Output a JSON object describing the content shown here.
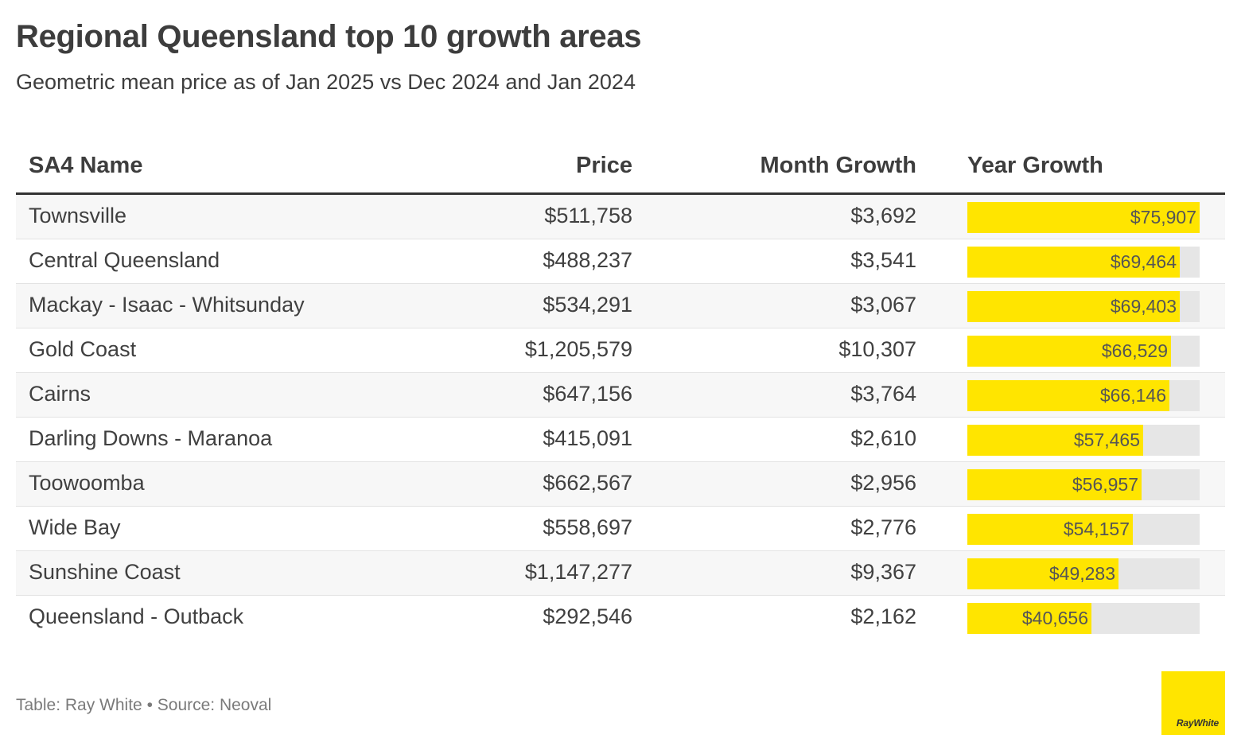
{
  "title": "Regional Queensland top 10 growth areas",
  "subtitle": "Geometric mean price as of Jan 2025 vs Dec 2024 and Jan 2024",
  "footer": "Table: Ray White • Source: Neoval",
  "logo_text": "RayWhite",
  "colors": {
    "bar": "#ffe500",
    "bar_track": "#e6e6e6",
    "logo_bg": "#ffe500"
  },
  "chart_data": {
    "type": "table",
    "columns": [
      "SA4 Name",
      "Price",
      "Month Growth",
      "Year Growth"
    ],
    "year_growth_max": 75907,
    "rows": [
      {
        "name": "Townsville",
        "price": "$511,758",
        "month_growth": "$3,692",
        "year_growth": 75907,
        "year_growth_label": "$75,907"
      },
      {
        "name": "Central Queensland",
        "price": "$488,237",
        "month_growth": "$3,541",
        "year_growth": 69464,
        "year_growth_label": "$69,464"
      },
      {
        "name": "Mackay - Isaac - Whitsunday",
        "price": "$534,291",
        "month_growth": "$3,067",
        "year_growth": 69403,
        "year_growth_label": "$69,403"
      },
      {
        "name": "Gold Coast",
        "price": "$1,205,579",
        "month_growth": "$10,307",
        "year_growth": 66529,
        "year_growth_label": "$66,529"
      },
      {
        "name": "Cairns",
        "price": "$647,156",
        "month_growth": "$3,764",
        "year_growth": 66146,
        "year_growth_label": "$66,146"
      },
      {
        "name": "Darling Downs - Maranoa",
        "price": "$415,091",
        "month_growth": "$2,610",
        "year_growth": 57465,
        "year_growth_label": "$57,465"
      },
      {
        "name": "Toowoomba",
        "price": "$662,567",
        "month_growth": "$2,956",
        "year_growth": 56957,
        "year_growth_label": "$56,957"
      },
      {
        "name": "Wide Bay",
        "price": "$558,697",
        "month_growth": "$2,776",
        "year_growth": 54157,
        "year_growth_label": "$54,157"
      },
      {
        "name": "Sunshine Coast",
        "price": "$1,147,277",
        "month_growth": "$9,367",
        "year_growth": 49283,
        "year_growth_label": "$49,283"
      },
      {
        "name": "Queensland - Outback",
        "price": "$292,546",
        "month_growth": "$2,162",
        "year_growth": 40656,
        "year_growth_label": "$40,656"
      }
    ]
  }
}
